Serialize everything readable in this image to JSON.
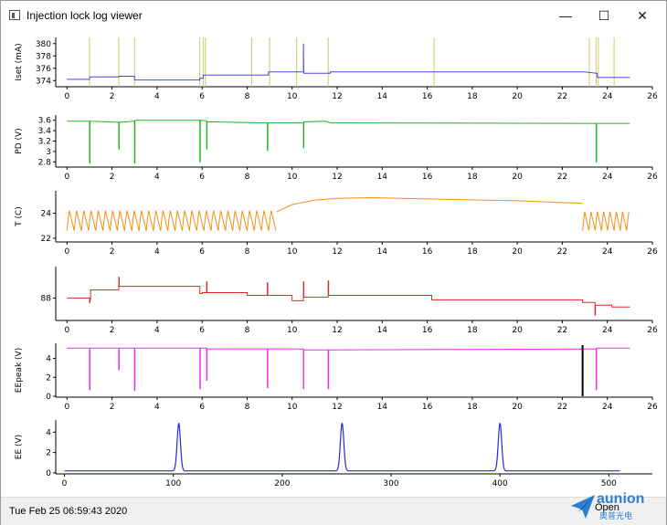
{
  "window": {
    "title": "Injection lock log viewer",
    "minimize_glyph": "—",
    "maximize_glyph": "☐",
    "close_glyph": "✕"
  },
  "status": {
    "timestamp": "Tue Feb 25 06:59:43 2020",
    "open_label": "Open"
  },
  "logo": {
    "brand": "aunion",
    "sub": "奥普光电"
  },
  "icons": [
    "app-icon",
    "minimize-icon",
    "maximize-icon",
    "close-icon",
    "logo-icon"
  ],
  "colors": {
    "iset": "#4a4ae0",
    "marker": "#c8c864",
    "pd": "#22b422",
    "t": "#f09018",
    "r": "#e02828",
    "eepeak": "#e82ce8",
    "ee": "#2828d8",
    "black": "#000000"
  },
  "chart_data": [
    {
      "type": "line",
      "name": "iset",
      "ylabel": "Iset (mA)",
      "yticks": [
        374,
        376,
        378,
        380
      ],
      "xticks": [
        0,
        2,
        4,
        6,
        8,
        10,
        12,
        14,
        16,
        18,
        20,
        22,
        24,
        26
      ],
      "xlim": [
        -0.5,
        26
      ],
      "ylim": [
        373,
        381
      ],
      "markers": [
        1.0,
        2.3,
        3.0,
        5.9,
        6.05,
        6.15,
        8.2,
        9.0,
        10.2,
        11.6,
        16.3,
        23.2,
        23.5,
        23.6,
        24.3
      ],
      "series": [
        {
          "x": [
            0,
            1.0,
            1.0,
            2.3,
            2.3,
            3.0,
            3.0,
            5.9,
            5.9,
            6.05,
            6.05,
            8.95,
            8.95,
            10.5,
            10.5,
            10.52,
            10.52,
            11.7,
            11.7,
            23.0,
            23.5,
            23.55,
            23.55,
            25.0
          ],
          "y": [
            374.2,
            374.2,
            374.6,
            374.6,
            374.7,
            374.7,
            374.1,
            374.1,
            374.4,
            374.4,
            374.9,
            374.9,
            375.4,
            375.4,
            380.0,
            375.5,
            375.2,
            375.2,
            375.4,
            375.4,
            375.2,
            375.2,
            374.5,
            374.5
          ]
        }
      ]
    },
    {
      "type": "line",
      "name": "pd",
      "ylabel": "PD (V)",
      "yticks": [
        2.8,
        3,
        3.2,
        3.4,
        3.6
      ],
      "xticks": [
        0,
        2,
        4,
        6,
        8,
        10,
        12,
        14,
        16,
        18,
        20,
        22,
        24,
        26
      ],
      "xlim": [
        -0.5,
        26
      ],
      "ylim": [
        2.7,
        3.7
      ],
      "series": [
        {
          "x": [
            0,
            1.0,
            1.0,
            1.02,
            1.02,
            2.3,
            2.3,
            2.32,
            2.32,
            3.0,
            3.0,
            3.02,
            3.02,
            5.9,
            5.9,
            5.92,
            5.92,
            6.2,
            6.2,
            6.22,
            6.22,
            8.9,
            8.9,
            8.92,
            8.92,
            10.5,
            10.5,
            10.52,
            10.52,
            11.5,
            11.7,
            23.5,
            23.5,
            23.52,
            23.52,
            25.0
          ],
          "y": [
            3.58,
            3.58,
            2.78,
            2.78,
            3.58,
            3.56,
            3.05,
            3.05,
            3.56,
            3.58,
            2.78,
            2.78,
            3.6,
            3.6,
            2.8,
            2.8,
            3.6,
            3.59,
            3.05,
            3.05,
            3.57,
            3.55,
            3.02,
            3.02,
            3.55,
            3.55,
            3.07,
            3.07,
            3.57,
            3.58,
            3.55,
            3.54,
            2.8,
            2.8,
            3.54,
            3.54
          ]
        }
      ]
    },
    {
      "type": "line",
      "name": "t",
      "ylabel": "T (C)",
      "yticks": [
        22,
        24
      ],
      "xticks": [
        0,
        2,
        4,
        6,
        8,
        10,
        12,
        14,
        16,
        18,
        20,
        22,
        24,
        26
      ],
      "xlim": [
        -0.5,
        26
      ],
      "ylim": [
        21.7,
        25.8
      ],
      "osc1": {
        "x0": 0.0,
        "x1": 9.3,
        "hi": 24.3,
        "lo": 22.6,
        "period": 0.32
      },
      "smooth": [
        [
          9.3,
          24.1
        ],
        [
          10.0,
          24.7
        ],
        [
          11.0,
          25.05
        ],
        [
          12.0,
          25.2
        ],
        [
          13.5,
          25.25
        ],
        [
          16.0,
          25.15
        ],
        [
          20.0,
          25.0
        ],
        [
          22.9,
          24.8
        ]
      ],
      "osc2": {
        "x0": 22.9,
        "x1": 25.0,
        "hi": 24.2,
        "lo": 22.6,
        "period": 0.28
      }
    },
    {
      "type": "line",
      "name": "r",
      "ylabel": "",
      "yticks": [
        88
      ],
      "xticks": [
        0,
        2,
        4,
        6,
        8,
        10,
        12,
        14,
        16,
        18,
        20,
        22,
        24,
        26
      ],
      "xlim": [
        -0.5,
        26
      ],
      "ylim": [
        85.5,
        91.5
      ],
      "series": [
        {
          "x": [
            0,
            1.0,
            1.0,
            1.05,
            1.05,
            1.05,
            2.3,
            2.3,
            2.32,
            2.32,
            5.9,
            5.9,
            6.0,
            6.0,
            6.2,
            6.2,
            6.22,
            6.22,
            8.0,
            8.0,
            8.9,
            8.9,
            8.92,
            8.92,
            10.0,
            10.0,
            10.5,
            10.5,
            10.52,
            10.52,
            11.6,
            11.6,
            11.62,
            11.62,
            16.2,
            16.2,
            22.9,
            22.9,
            23.45,
            23.45,
            23.47,
            23.47,
            24.2,
            24.2,
            25.0
          ],
          "y": [
            88.0,
            88.0,
            87.4,
            88.0,
            88.0,
            88.9,
            88.9,
            90.3,
            90.3,
            89.3,
            89.3,
            88.5,
            88.5,
            88.6,
            88.6,
            89.8,
            89.8,
            88.6,
            88.6,
            88.3,
            88.3,
            89.7,
            89.7,
            88.3,
            88.3,
            87.7,
            87.7,
            89.8,
            89.8,
            88.1,
            88.1,
            89.9,
            89.9,
            88.3,
            88.3,
            87.8,
            87.8,
            87.5,
            87.5,
            86.1,
            86.1,
            87.2,
            87.2,
            87.0,
            87.0
          ]
        }
      ]
    },
    {
      "type": "line",
      "name": "eepeak",
      "ylabel": "EEpeak (V)",
      "yticks": [
        0,
        2,
        4
      ],
      "xticks": [
        0,
        2,
        4,
        6,
        8,
        10,
        12,
        14,
        16,
        18,
        20,
        22,
        24,
        26
      ],
      "xlim": [
        -0.5,
        26
      ],
      "ylim": [
        -0.1,
        5.6
      ],
      "series": [
        {
          "x": [
            0,
            1.0,
            1.0,
            1.02,
            1.02,
            2.3,
            2.3,
            2.32,
            2.32,
            3.0,
            3.0,
            3.02,
            3.02,
            5.9,
            5.9,
            5.92,
            5.92,
            6.2,
            6.2,
            6.22,
            6.22,
            8.9,
            8.9,
            8.92,
            8.92,
            10.5,
            10.5,
            10.52,
            10.52,
            11.6,
            11.6,
            11.62,
            11.62,
            23.5,
            23.5,
            23.52,
            23.52,
            25.0
          ],
          "y": [
            5.1,
            5.1,
            0.7,
            0.7,
            5.1,
            5.1,
            2.8,
            2.8,
            5.1,
            5.1,
            0.6,
            0.6,
            5.1,
            5.1,
            0.8,
            0.8,
            5.1,
            5.1,
            1.7,
            1.7,
            5.0,
            5.0,
            0.9,
            0.9,
            5.0,
            5.0,
            0.8,
            0.8,
            4.9,
            4.9,
            0.8,
            0.8,
            4.9,
            5.0,
            0.7,
            0.7,
            5.1,
            5.1
          ]
        }
      ],
      "black_spike": {
        "x": 22.9,
        "y0": 0,
        "y1": 5.4
      }
    },
    {
      "type": "line",
      "name": "ee",
      "ylabel": "EE (V)",
      "yticks": [
        0,
        2,
        4
      ],
      "xticks": [
        0,
        100,
        200,
        300,
        400,
        500
      ],
      "xlim": [
        -8,
        540
      ],
      "ylim": [
        -0.1,
        5.2
      ],
      "baseline": 0.2,
      "peaks": [
        {
          "x": 105,
          "y": 4.9
        },
        {
          "x": 255,
          "y": 4.9
        },
        {
          "x": 400,
          "y": 4.9
        }
      ],
      "x_end": 510
    }
  ]
}
